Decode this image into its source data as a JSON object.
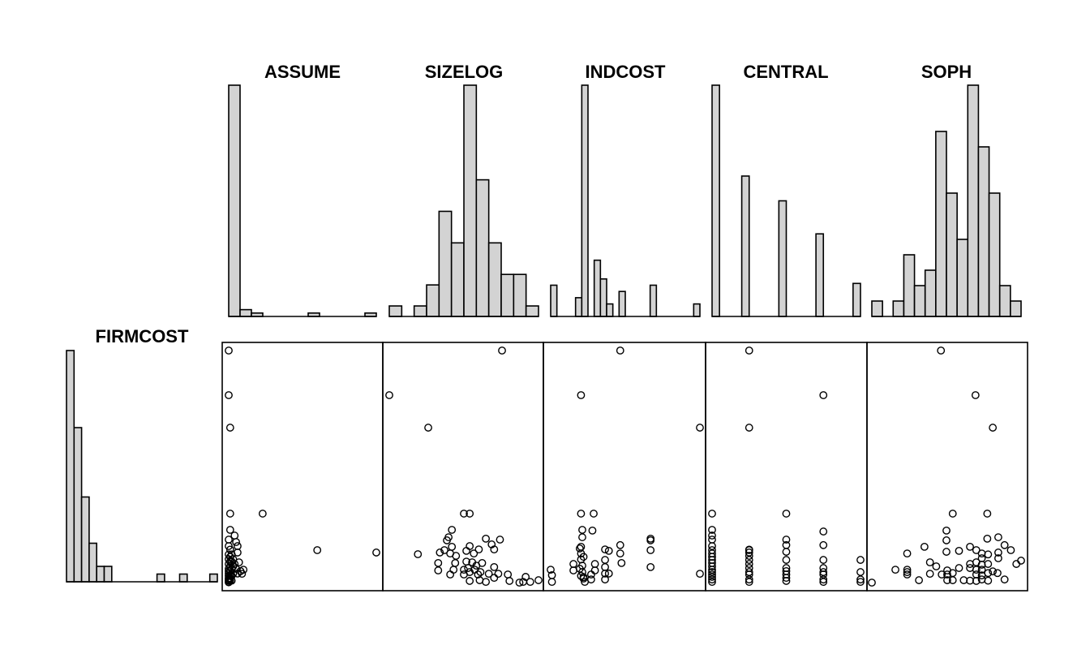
{
  "chart_data": {
    "type": "scatter-matrix",
    "bar_fill": "#d3d3d3",
    "response": {
      "name": "FIRMCOST",
      "range": [
        0.2,
        97.4
      ],
      "histogram": [
        30,
        20,
        11,
        5,
        2,
        2,
        0,
        0,
        0,
        0,
        0,
        0,
        1,
        0,
        0,
        1,
        0,
        0,
        0,
        1
      ]
    },
    "variables": [
      {
        "name": "ASSUME",
        "range": [
          0,
          100
        ],
        "histogram": [
          68,
          2,
          1,
          0,
          0,
          0,
          0,
          1,
          0,
          0,
          0,
          0,
          1
        ],
        "points": [
          [
            0,
            97.4
          ],
          [
            0,
            78.7
          ],
          [
            1,
            65.1
          ],
          [
            1,
            29.1
          ],
          [
            23,
            29.1
          ],
          [
            60,
            13.8
          ],
          [
            100,
            12.8
          ],
          [
            1,
            22.3
          ],
          [
            4,
            19.9
          ],
          [
            5,
            17.2
          ],
          [
            6,
            15.5
          ],
          [
            6,
            12.8
          ],
          [
            7,
            8.7
          ],
          [
            10,
            5.6
          ],
          [
            9,
            3.9
          ],
          [
            0,
            18.2
          ],
          [
            0,
            15.5
          ],
          [
            0,
            12
          ],
          [
            0,
            10
          ],
          [
            0,
            8
          ],
          [
            0,
            6
          ],
          [
            0,
            5
          ],
          [
            0,
            4
          ],
          [
            0,
            3
          ],
          [
            0,
            2
          ],
          [
            0,
            1.5
          ],
          [
            0,
            1
          ],
          [
            0,
            0.5
          ],
          [
            1,
            14
          ],
          [
            1,
            11
          ],
          [
            1,
            9
          ],
          [
            1,
            7
          ],
          [
            1,
            5
          ],
          [
            1,
            3
          ],
          [
            1,
            2
          ],
          [
            1,
            1
          ],
          [
            2,
            12
          ],
          [
            2,
            9
          ],
          [
            2,
            6
          ],
          [
            2,
            3
          ],
          [
            3,
            10
          ],
          [
            3,
            7
          ],
          [
            3,
            4
          ],
          [
            4,
            8
          ],
          [
            5,
            6
          ],
          [
            6,
            4
          ],
          [
            8,
            5
          ],
          [
            2,
            1
          ],
          [
            0,
            0.3
          ]
        ]
      },
      {
        "name": "SIZELOG",
        "range": [
          0.6,
          4.2
        ],
        "histogram": [
          1,
          0,
          1,
          3,
          10,
          7,
          22,
          13,
          7,
          4,
          4,
          1
        ],
        "points": [
          [
            3.32,
            97.4
          ],
          [
            0.6,
            78.7
          ],
          [
            1.54,
            65.1
          ],
          [
            2.4,
            29.1
          ],
          [
            2.54,
            29.1
          ],
          [
            2.11,
            22.3
          ],
          [
            2.03,
            19.2
          ],
          [
            1.99,
            17.9
          ],
          [
            2.93,
            18.6
          ],
          [
            3.27,
            18.2
          ],
          [
            3.07,
            16.2
          ],
          [
            3.13,
            14.1
          ],
          [
            2.11,
            15.2
          ],
          [
            2.54,
            15.5
          ],
          [
            2.76,
            14.1
          ],
          [
            1.29,
            12.1
          ],
          [
            1.82,
            12.8
          ],
          [
            1.93,
            13.8
          ],
          [
            2.07,
            12.4
          ],
          [
            2.21,
            11.4
          ],
          [
            2.46,
            13.5
          ],
          [
            2.64,
            12.4
          ],
          [
            1.78,
            8.4
          ],
          [
            1.78,
            5.3
          ],
          [
            2.19,
            8.4
          ],
          [
            2.07,
            3.6
          ],
          [
            2.15,
            5.6
          ],
          [
            2.46,
            9.0
          ],
          [
            2.6,
            8.7
          ],
          [
            2.7,
            7.3
          ],
          [
            2.84,
            8.4
          ],
          [
            2.4,
            5.6
          ],
          [
            2.54,
            4.6
          ],
          [
            2.66,
            5.6
          ],
          [
            2.8,
            4.6
          ],
          [
            3.0,
            3.9
          ],
          [
            3.13,
            6.7
          ],
          [
            3.23,
            3.9
          ],
          [
            3.13,
            2.2
          ],
          [
            2.54,
            0.9
          ],
          [
            2.78,
            1.2
          ],
          [
            2.93,
            0.5
          ],
          [
            3.46,
            3.6
          ],
          [
            3.5,
            0.9
          ],
          [
            3.89,
            2.6
          ],
          [
            3.74,
            0.2
          ],
          [
            3.83,
            0.5
          ],
          [
            4.0,
            0.5
          ],
          [
            4.2,
            1.2
          ],
          [
            2.4,
            3.6
          ],
          [
            2.5,
            6.3
          ],
          [
            2.74,
            3.6
          ]
        ]
      },
      {
        "name": "INDCOST",
        "range": [
          0.04,
          1.22
        ],
        "histogram": [
          5,
          0,
          0,
          0,
          3,
          37,
          0,
          9,
          6,
          2,
          0,
          4,
          0,
          0,
          0,
          0,
          5,
          0,
          0,
          0,
          0,
          0,
          0,
          2
        ],
        "points": [
          [
            0.59,
            97.4
          ],
          [
            0.28,
            78.7
          ],
          [
            1.22,
            65.1
          ],
          [
            0.28,
            29.1
          ],
          [
            0.38,
            29.1
          ],
          [
            0.29,
            22.3
          ],
          [
            0.37,
            22.0
          ],
          [
            0.29,
            19.2
          ],
          [
            0.59,
            15.9
          ],
          [
            0.59,
            12.4
          ],
          [
            0.6,
            8.4
          ],
          [
            0.83,
            18.6
          ],
          [
            0.83,
            17.9
          ],
          [
            0.83,
            13.8
          ],
          [
            0.83,
            6.7
          ],
          [
            1.22,
            3.9
          ],
          [
            0.04,
            5.6
          ],
          [
            0.05,
            3.3
          ],
          [
            0.05,
            0.5
          ],
          [
            0.22,
            8.0
          ],
          [
            0.22,
            5.3
          ],
          [
            0.28,
            15.2
          ],
          [
            0.28,
            12.4
          ],
          [
            0.28,
            9.9
          ],
          [
            0.29,
            7.3
          ],
          [
            0.29,
            4.6
          ],
          [
            0.3,
            1.9
          ],
          [
            0.31,
            0.5
          ],
          [
            0.39,
            8.0
          ],
          [
            0.39,
            5.3
          ],
          [
            0.36,
            3.6
          ],
          [
            0.36,
            1.5
          ],
          [
            0.47,
            14.1
          ],
          [
            0.5,
            13.5
          ],
          [
            0.47,
            9.7
          ],
          [
            0.47,
            6.7
          ],
          [
            0.47,
            4.0
          ],
          [
            0.47,
            1.5
          ],
          [
            0.5,
            4.0
          ],
          [
            0.27,
            14.5
          ],
          [
            0.27,
            6.0
          ],
          [
            0.28,
            3.0
          ],
          [
            0.3,
            11.0
          ],
          [
            0.3,
            2.5
          ]
        ]
      },
      {
        "name": "CENTRAL",
        "range": [
          1,
          5
        ],
        "histogram": [
          28,
          0,
          0,
          0,
          17,
          0,
          0,
          0,
          0,
          14,
          0,
          0,
          0,
          0,
          10,
          0,
          0,
          0,
          0,
          4
        ],
        "points": [
          [
            1,
            29.1
          ],
          [
            1,
            22.3
          ],
          [
            1,
            19.9
          ],
          [
            1,
            18.2
          ],
          [
            1,
            15.5
          ],
          [
            1,
            13.8
          ],
          [
            1,
            12.4
          ],
          [
            1,
            11
          ],
          [
            1,
            9.7
          ],
          [
            1,
            8.4
          ],
          [
            1,
            7
          ],
          [
            1,
            5.6
          ],
          [
            1,
            4.6
          ],
          [
            1,
            3.6
          ],
          [
            1,
            2.6
          ],
          [
            1,
            1.5
          ],
          [
            1,
            0.5
          ],
          [
            2,
            97.4
          ],
          [
            2,
            65.1
          ],
          [
            2,
            14
          ],
          [
            2,
            13.8
          ],
          [
            2,
            12.8
          ],
          [
            2,
            11.4
          ],
          [
            2,
            9.7
          ],
          [
            2,
            8
          ],
          [
            2,
            6.3
          ],
          [
            2,
            4.6
          ],
          [
            2,
            3.6
          ],
          [
            2,
            1.5
          ],
          [
            2,
            0.5
          ],
          [
            3,
            29.1
          ],
          [
            3,
            18.2
          ],
          [
            3,
            15.9
          ],
          [
            3,
            13.1
          ],
          [
            3,
            9.7
          ],
          [
            3,
            6.3
          ],
          [
            3,
            5
          ],
          [
            3,
            3.6
          ],
          [
            3,
            2.2
          ],
          [
            3,
            0.9
          ],
          [
            4,
            78.7
          ],
          [
            4,
            21.6
          ],
          [
            4,
            15.9
          ],
          [
            4,
            9.7
          ],
          [
            4,
            6.3
          ],
          [
            4,
            4.6
          ],
          [
            4,
            3.6
          ],
          [
            4,
            1.5
          ],
          [
            4,
            0.5
          ],
          [
            5,
            9.7
          ],
          [
            5,
            4.6
          ],
          [
            5,
            1.5
          ],
          [
            5,
            0.5
          ]
        ]
      },
      {
        "name": "SOPH",
        "range": [
          1,
          20
        ],
        "histogram": [
          1,
          0,
          1,
          4,
          2,
          3,
          12,
          8,
          5,
          15,
          11,
          8,
          2,
          1
        ],
        "points": [
          [
            9.8,
            97.4
          ],
          [
            14.2,
            78.7
          ],
          [
            16.4,
            65.1
          ],
          [
            11.3,
            29.1
          ],
          [
            15.7,
            29.1
          ],
          [
            10.5,
            22.0
          ],
          [
            10.5,
            17.9
          ],
          [
            10.5,
            13.1
          ],
          [
            7.7,
            15.2
          ],
          [
            5.5,
            12.4
          ],
          [
            12.1,
            13.5
          ],
          [
            13.5,
            15.2
          ],
          [
            15.7,
            18.6
          ],
          [
            17.1,
            19.2
          ],
          [
            17.9,
            15.9
          ],
          [
            18.7,
            13.8
          ],
          [
            17.1,
            12.8
          ],
          [
            17.1,
            10.4
          ],
          [
            19.4,
            8.0
          ],
          [
            20.0,
            9.4
          ],
          [
            1.0,
            0.2
          ],
          [
            4.0,
            5.6
          ],
          [
            5.5,
            5.6
          ],
          [
            5.5,
            4.6
          ],
          [
            5.5,
            3.6
          ],
          [
            7.0,
            1.2
          ],
          [
            8.4,
            8.7
          ],
          [
            8.4,
            3.9
          ],
          [
            9.2,
            7.0
          ],
          [
            9.9,
            3.6
          ],
          [
            10.6,
            5.3
          ],
          [
            10.6,
            3.6
          ],
          [
            10.6,
            1.2
          ],
          [
            11.3,
            4.2
          ],
          [
            11.3,
            1.2
          ],
          [
            12.1,
            6.3
          ],
          [
            12.7,
            1.2
          ],
          [
            13.5,
            8.0
          ],
          [
            13.5,
            6.3
          ],
          [
            13.5,
            1.0
          ],
          [
            14.3,
            13.8
          ],
          [
            14.3,
            8.7
          ],
          [
            14.3,
            5.6
          ],
          [
            14.3,
            3.6
          ],
          [
            14.3,
            0.9
          ],
          [
            15.0,
            12.4
          ],
          [
            15.0,
            10.4
          ],
          [
            15.0,
            7.7
          ],
          [
            15.0,
            5.6
          ],
          [
            15.0,
            3.2
          ],
          [
            15.0,
            1.5
          ],
          [
            15.8,
            12.0
          ],
          [
            15.8,
            8.0
          ],
          [
            15.8,
            4.2
          ],
          [
            15.8,
            1.0
          ],
          [
            16.4,
            4.9
          ],
          [
            17.0,
            4.2
          ],
          [
            17.9,
            1.5
          ]
        ]
      }
    ]
  }
}
